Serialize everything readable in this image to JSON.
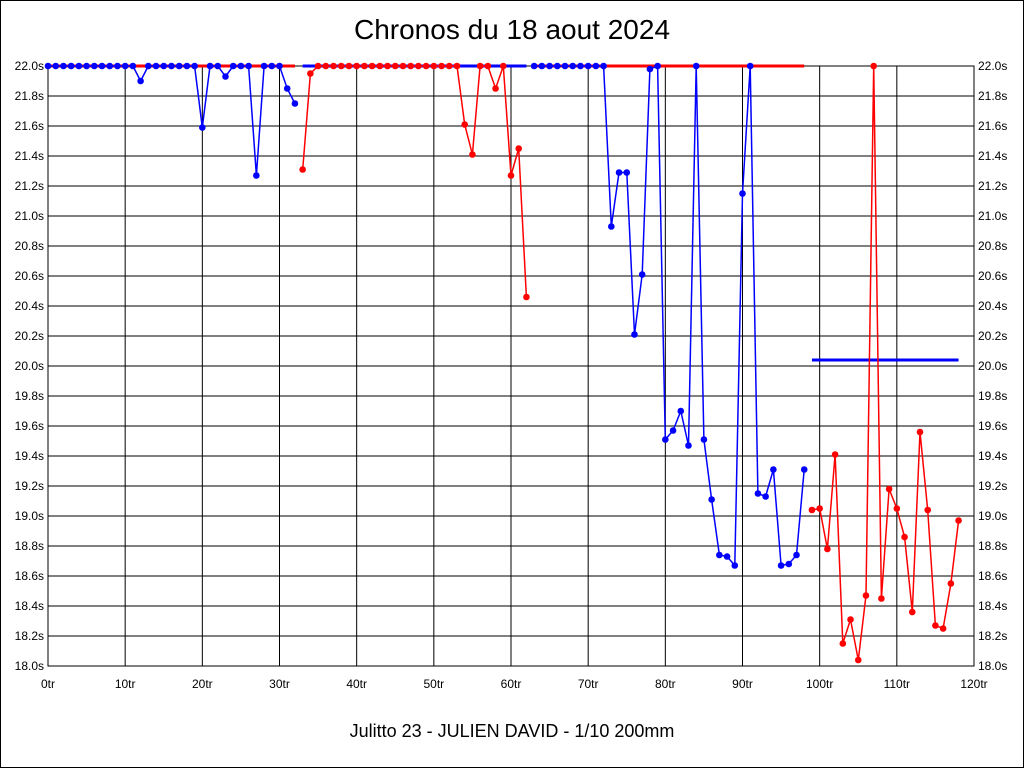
{
  "chart_data": {
    "type": "line",
    "title": "Chronos du 18 aout 2024",
    "footer": "Julitto 23 - JULIEN DAVID - 1/10 200mm",
    "xlabel": "",
    "ylabel": "",
    "xlim": [
      0,
      120
    ],
    "ylim": [
      18.0,
      22.0
    ],
    "grid": true,
    "x_ticks": [
      0,
      10,
      20,
      30,
      40,
      50,
      60,
      70,
      80,
      90,
      100,
      110,
      120
    ],
    "x_tick_labels": [
      "0tr",
      "10tr",
      "20tr",
      "30tr",
      "40tr",
      "50tr",
      "60tr",
      "70tr",
      "80tr",
      "90tr",
      "100tr",
      "110tr",
      "120tr"
    ],
    "y_ticks": [
      18.0,
      18.2,
      18.4,
      18.6,
      18.8,
      19.0,
      19.2,
      19.4,
      19.6,
      19.8,
      20.0,
      20.2,
      20.4,
      20.6,
      20.8,
      21.0,
      21.2,
      21.4,
      21.6,
      21.8,
      22.0
    ],
    "y_tick_labels": [
      "18.0s",
      "18.2s",
      "18.4s",
      "18.6s",
      "18.8s",
      "19.0s",
      "19.2s",
      "19.4s",
      "19.6s",
      "19.8s",
      "20.0s",
      "20.2s",
      "20.4s",
      "20.6s",
      "20.8s",
      "21.0s",
      "21.2s",
      "21.4s",
      "21.6s",
      "21.8s",
      "22.0s"
    ],
    "colors": {
      "blue": "#0000ff",
      "red": "#ff0000"
    },
    "series": [
      {
        "color": "#0000ff",
        "x_start": 0,
        "values": [
          22.0,
          22.0,
          22.0,
          22.0,
          22.0,
          22.0,
          22.0,
          22.0,
          22.0,
          22.0,
          22.0,
          22.0,
          21.9,
          22.0,
          22.0,
          22.0,
          22.0,
          22.0,
          22.0,
          22.0,
          21.59,
          22.0,
          22.0,
          21.93,
          22.0,
          22.0,
          22.0,
          21.27,
          22.0,
          22.0,
          22.0,
          21.85,
          21.75
        ]
      },
      {
        "color": "#ff0000",
        "x_start": 33,
        "values": [
          21.31,
          21.95,
          22.0,
          22.0,
          22.0,
          22.0,
          22.0,
          22.0,
          22.0,
          22.0,
          22.0,
          22.0,
          22.0,
          22.0,
          22.0,
          22.0,
          22.0,
          22.0,
          22.0,
          22.0,
          22.0,
          21.61,
          21.41,
          22.0,
          22.0,
          21.85,
          22.0,
          21.27,
          21.45,
          20.46
        ]
      },
      {
        "color": "#0000ff",
        "x_start": 63,
        "values": [
          22.0,
          22.0,
          22.0,
          22.0,
          22.0,
          22.0,
          22.0,
          22.0,
          22.0,
          22.0,
          20.93,
          21.29,
          21.29,
          20.21,
          20.61,
          21.98,
          22.0,
          19.51,
          19.57,
          19.7,
          19.47,
          22.0,
          19.51,
          19.11,
          18.74,
          18.73,
          18.67,
          21.15,
          22.0,
          19.15,
          19.13,
          19.31,
          18.67,
          18.68,
          18.74,
          19.31
        ]
      },
      {
        "color": "#ff0000",
        "x_start": 99,
        "values": [
          19.04,
          19.05,
          18.78,
          19.41,
          18.15,
          18.31,
          18.04,
          18.47,
          22.0,
          18.45,
          19.18,
          19.05,
          18.86,
          18.36,
          19.56,
          19.04,
          18.27,
          18.25,
          18.55,
          18.97
        ]
      }
    ],
    "reference_lines": [
      {
        "color": "#ff0000",
        "x": [
          0,
          32
        ],
        "y": 22.0
      },
      {
        "color": "#0000ff",
        "x": [
          33,
          62
        ],
        "y": 22.0
      },
      {
        "color": "#ff0000",
        "x": [
          63,
          98
        ],
        "y": 22.0
      },
      {
        "color": "#0000ff",
        "x": [
          99,
          118
        ],
        "y": 20.04
      }
    ]
  }
}
